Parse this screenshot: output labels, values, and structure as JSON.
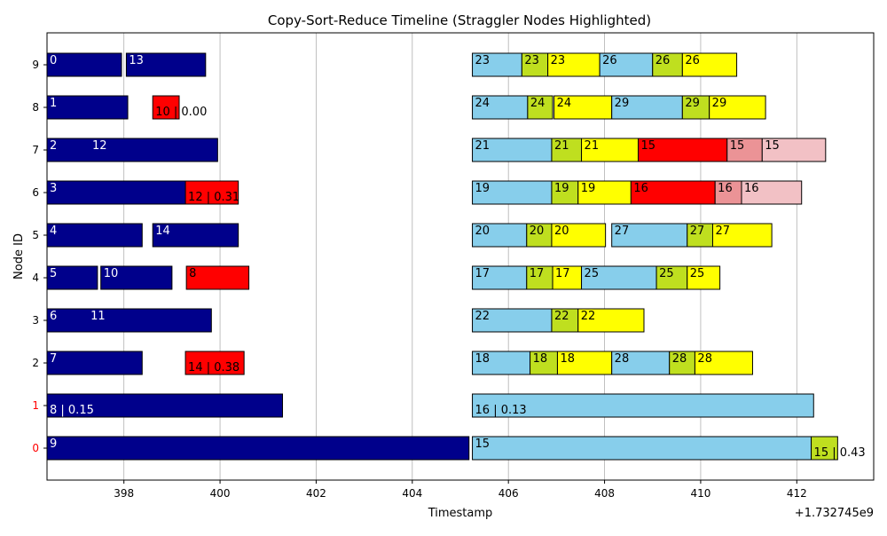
{
  "chart_data": {
    "type": "timeline",
    "title": "Copy-Sort-Reduce Timeline (Straggler Nodes Highlighted)",
    "xlabel": "Timestamp",
    "ylabel": "Node ID",
    "x_offset_label": "+1.732745e9",
    "xlim": [
      396.4,
      413.6
    ],
    "ylim": [
      -0.75,
      9.75
    ],
    "x_ticks": [
      398,
      400,
      402,
      404,
      406,
      408,
      410,
      412
    ],
    "y_ticks": [
      0,
      1,
      2,
      3,
      4,
      5,
      6,
      7,
      8,
      9
    ],
    "straggler_nodes": [
      0,
      1
    ],
    "grid": "vertical",
    "colors": {
      "dark": "#00008B",
      "red": "#FF0000",
      "sky": "#87CEEB",
      "lime": "#BFDF1F",
      "yellow": "#FFFF00",
      "rose": "#EB9396",
      "pink": "#F2C1C5",
      "straggler_tick": "#FF0000",
      "light_text": "#FFFFFF",
      "dark_text": "#000000"
    },
    "tasks": [
      {
        "node": 9,
        "start": 396.4,
        "end": 397.95,
        "label": "0",
        "color": "dark"
      },
      {
        "node": 9,
        "start": 398.05,
        "end": 399.7,
        "label": "13",
        "color": "dark"
      },
      {
        "node": 9,
        "start": 405.25,
        "end": 406.28,
        "label": "23",
        "color": "sky"
      },
      {
        "node": 9,
        "start": 406.28,
        "end": 406.82,
        "label": "23",
        "color": "lime"
      },
      {
        "node": 9,
        "start": 406.82,
        "end": 407.9,
        "label": "23",
        "color": "yellow"
      },
      {
        "node": 9,
        "start": 407.9,
        "end": 409.0,
        "label": "26",
        "color": "sky"
      },
      {
        "node": 9,
        "start": 409.0,
        "end": 409.62,
        "label": "26",
        "color": "lime"
      },
      {
        "node": 9,
        "start": 409.62,
        "end": 410.75,
        "label": "26",
        "color": "yellow"
      },
      {
        "node": 8,
        "start": 396.4,
        "end": 398.08,
        "label": "1",
        "color": "dark"
      },
      {
        "node": 8,
        "start": 398.6,
        "end": 399.15,
        "label": "10 | 0.00",
        "color": "red"
      },
      {
        "node": 8,
        "start": 405.25,
        "end": 406.4,
        "label": "24",
        "color": "sky"
      },
      {
        "node": 8,
        "start": 406.4,
        "end": 406.92,
        "label": "24",
        "color": "lime"
      },
      {
        "node": 8,
        "start": 406.95,
        "end": 408.15,
        "label": "24",
        "color": "yellow"
      },
      {
        "node": 8,
        "start": 408.15,
        "end": 409.62,
        "label": "29",
        "color": "sky"
      },
      {
        "node": 8,
        "start": 409.62,
        "end": 410.18,
        "label": "29",
        "color": "lime"
      },
      {
        "node": 8,
        "start": 410.18,
        "end": 411.35,
        "label": "29",
        "color": "yellow"
      },
      {
        "node": 7,
        "start": 396.4,
        "end": 399.95,
        "label": "2",
        "color": "dark",
        "labels_extra": [
          "12"
        ]
      },
      {
        "node": 7,
        "start": 405.25,
        "end": 406.9,
        "label": "21",
        "color": "sky"
      },
      {
        "node": 7,
        "start": 406.9,
        "end": 407.52,
        "label": "21",
        "color": "lime"
      },
      {
        "node": 7,
        "start": 407.52,
        "end": 408.7,
        "label": "21",
        "color": "yellow"
      },
      {
        "node": 7,
        "start": 408.7,
        "end": 410.55,
        "label": "15",
        "color": "red"
      },
      {
        "node": 7,
        "start": 410.55,
        "end": 411.28,
        "label": "15",
        "color": "rose"
      },
      {
        "node": 7,
        "start": 411.28,
        "end": 412.6,
        "label": "15",
        "color": "pink"
      },
      {
        "node": 6,
        "start": 396.4,
        "end": 399.65,
        "label": "3",
        "color": "dark"
      },
      {
        "node": 6,
        "start": 399.28,
        "end": 400.38,
        "label": "12 | 0.31",
        "color": "red"
      },
      {
        "node": 6,
        "start": 405.25,
        "end": 406.9,
        "label": "19",
        "color": "sky"
      },
      {
        "node": 6,
        "start": 406.9,
        "end": 407.45,
        "label": "19",
        "color": "lime"
      },
      {
        "node": 6,
        "start": 407.45,
        "end": 408.55,
        "label": "19",
        "color": "yellow"
      },
      {
        "node": 6,
        "start": 408.55,
        "end": 410.3,
        "label": "16",
        "color": "red"
      },
      {
        "node": 6,
        "start": 410.3,
        "end": 410.85,
        "label": "16",
        "color": "rose"
      },
      {
        "node": 6,
        "start": 410.85,
        "end": 412.1,
        "label": "16",
        "color": "pink"
      },
      {
        "node": 5,
        "start": 396.4,
        "end": 398.38,
        "label": "4",
        "color": "dark"
      },
      {
        "node": 5,
        "start": 398.6,
        "end": 400.38,
        "label": "14",
        "color": "dark"
      },
      {
        "node": 5,
        "start": 405.25,
        "end": 406.38,
        "label": "20",
        "color": "sky"
      },
      {
        "node": 5,
        "start": 406.38,
        "end": 406.9,
        "label": "20",
        "color": "lime"
      },
      {
        "node": 5,
        "start": 406.9,
        "end": 408.02,
        "label": "20",
        "color": "yellow"
      },
      {
        "node": 5,
        "start": 408.15,
        "end": 409.72,
        "label": "27",
        "color": "sky"
      },
      {
        "node": 5,
        "start": 409.72,
        "end": 410.25,
        "label": "27",
        "color": "lime"
      },
      {
        "node": 5,
        "start": 410.25,
        "end": 411.48,
        "label": "27",
        "color": "yellow"
      },
      {
        "node": 4,
        "start": 396.4,
        "end": 397.45,
        "label": "5",
        "color": "dark"
      },
      {
        "node": 4,
        "start": 397.52,
        "end": 399.0,
        "label": "10",
        "color": "dark"
      },
      {
        "node": 4,
        "start": 399.3,
        "end": 400.6,
        "label": "8",
        "color": "red"
      },
      {
        "node": 4,
        "start": 405.25,
        "end": 406.38,
        "label": "17",
        "color": "sky"
      },
      {
        "node": 4,
        "start": 406.38,
        "end": 406.92,
        "label": "17",
        "color": "lime"
      },
      {
        "node": 4,
        "start": 406.92,
        "end": 407.52,
        "label": "17",
        "color": "yellow"
      },
      {
        "node": 4,
        "start": 407.52,
        "end": 409.08,
        "label": "25",
        "color": "sky"
      },
      {
        "node": 4,
        "start": 409.08,
        "end": 409.72,
        "label": "25",
        "color": "lime"
      },
      {
        "node": 4,
        "start": 409.72,
        "end": 410.4,
        "label": "25",
        "color": "yellow"
      },
      {
        "node": 3,
        "start": 396.4,
        "end": 399.82,
        "label": "6",
        "color": "dark",
        "labels_extra": [
          "11"
        ]
      },
      {
        "node": 3,
        "start": 405.25,
        "end": 406.9,
        "label": "22",
        "color": "sky"
      },
      {
        "node": 3,
        "start": 406.9,
        "end": 407.45,
        "label": "22",
        "color": "lime"
      },
      {
        "node": 3,
        "start": 407.45,
        "end": 408.82,
        "label": "22",
        "color": "yellow"
      },
      {
        "node": 2,
        "start": 396.4,
        "end": 398.38,
        "label": "7",
        "color": "dark"
      },
      {
        "node": 2,
        "start": 399.28,
        "end": 400.5,
        "label": "14 | 0.38",
        "color": "red"
      },
      {
        "node": 2,
        "start": 405.25,
        "end": 406.45,
        "label": "18",
        "color": "sky"
      },
      {
        "node": 2,
        "start": 406.45,
        "end": 407.02,
        "label": "18",
        "color": "lime"
      },
      {
        "node": 2,
        "start": 407.02,
        "end": 408.15,
        "label": "18",
        "color": "yellow"
      },
      {
        "node": 2,
        "start": 408.15,
        "end": 409.35,
        "label": "28",
        "color": "sky"
      },
      {
        "node": 2,
        "start": 409.35,
        "end": 409.88,
        "label": "28",
        "color": "lime"
      },
      {
        "node": 2,
        "start": 409.88,
        "end": 411.08,
        "label": "28",
        "color": "yellow"
      },
      {
        "node": 1,
        "start": 396.4,
        "end": 401.3,
        "label": "8 | 0.15",
        "color": "dark"
      },
      {
        "node": 1,
        "start": 405.25,
        "end": 412.35,
        "label": "16 | 0.13",
        "color": "sky"
      },
      {
        "node": 0,
        "start": 396.4,
        "end": 405.18,
        "label": "9",
        "color": "dark"
      },
      {
        "node": 0,
        "start": 405.25,
        "end": 412.3,
        "label": "15",
        "color": "sky"
      },
      {
        "node": 0,
        "start": 412.3,
        "end": 412.85,
        "label": "15 | 0.43",
        "color": "lime"
      }
    ]
  }
}
